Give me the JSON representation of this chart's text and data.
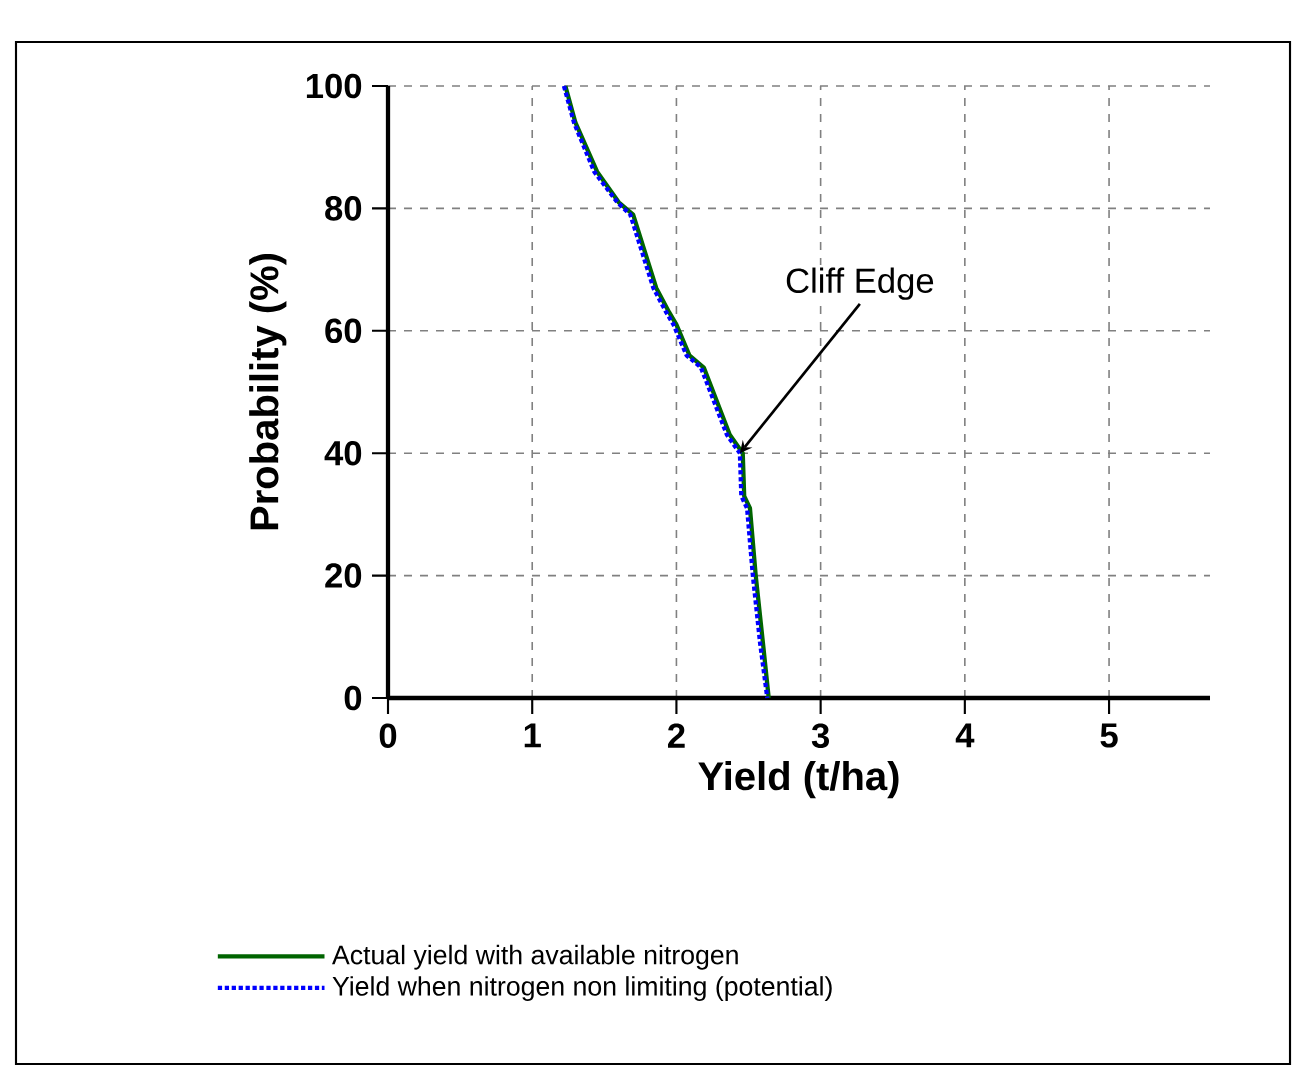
{
  "chart_data": {
    "type": "line",
    "xlabel": "Yield (t/ha)",
    "ylabel": "Probability (%)",
    "xlim": [
      0,
      5.7
    ],
    "ylim": [
      0,
      100
    ],
    "xticks": [
      0,
      1,
      2,
      3,
      4,
      5
    ],
    "yticks": [
      0,
      20,
      40,
      60,
      80,
      100
    ],
    "grid": true,
    "legend": "bottom",
    "marker": "none",
    "annotations": [
      {
        "text": "Cliff Edge",
        "x": 2.44,
        "y": 40
      }
    ],
    "series": [
      {
        "name": "Actual yield with available nitrogen",
        "color": "#006400",
        "line_style": "solid",
        "x": [
          1.23,
          1.3,
          1.45,
          1.6,
          1.7,
          1.86,
          1.95,
          2.0,
          2.09,
          2.19,
          2.37,
          2.46,
          2.47,
          2.51,
          2.55,
          2.6,
          2.64
        ],
        "values": [
          100,
          94,
          86,
          81,
          79,
          67,
          63,
          61,
          56,
          54,
          43,
          40,
          33,
          31,
          20,
          9,
          0
        ]
      },
      {
        "name": "Yield when nitrogen non limiting (potential)",
        "color": "#0000ff",
        "line_style": "dotted",
        "x": [
          1.22,
          1.29,
          1.43,
          1.59,
          1.68,
          1.84,
          1.93,
          1.98,
          2.07,
          2.17,
          2.35,
          2.44,
          2.45,
          2.49,
          2.53,
          2.58,
          2.63
        ],
        "values": [
          100,
          94,
          86,
          81,
          79,
          67,
          63,
          61,
          56,
          54,
          43,
          40,
          33,
          31,
          20,
          9,
          0
        ]
      }
    ]
  }
}
